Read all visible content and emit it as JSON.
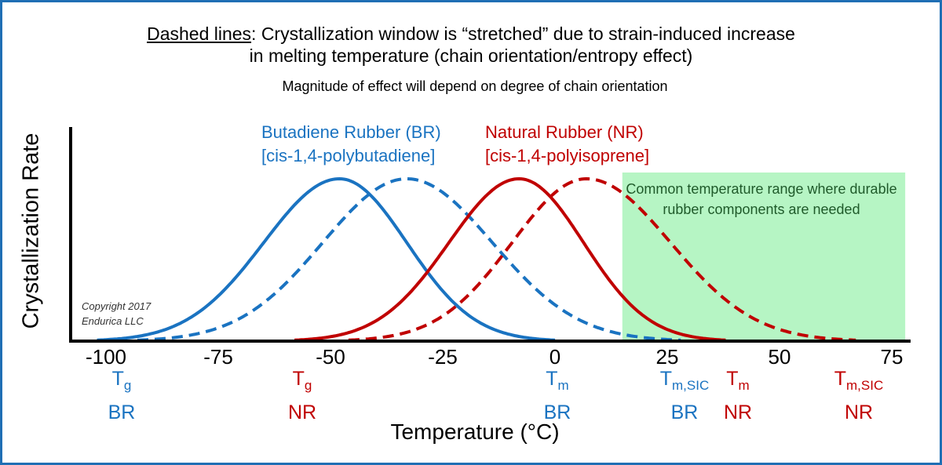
{
  "header": {
    "title_prefix": "Dashed lines",
    "title_line1_rest": ": Crystallization window is “stretched” due to strain-induced increase",
    "title_line2": "in melting temperature (chain orientation/entropy effect)",
    "subtitle": "Magnitude of effect will depend on degree of chain orientation"
  },
  "copyright": {
    "line1": "Copyright 2017",
    "line2": "Endurica LLC"
  },
  "shaded_region": {
    "text": "Common temperature range where durable rubber components are needed",
    "x_start": 15,
    "x_end": 78,
    "color": "#b6f5c4"
  },
  "annotations": {
    "tg_br": {
      "main": "T",
      "sub": "g",
      "material": "BR"
    },
    "tg_nr": {
      "main": "T",
      "sub": "g",
      "material": "NR"
    },
    "tm_br": {
      "main": "T",
      "sub": "m",
      "material": "BR"
    },
    "tmsic_br": {
      "main": "T",
      "sub": "m,SIC",
      "material": "BR"
    },
    "tm_nr": {
      "main": "T",
      "sub": "m",
      "material": "NR"
    },
    "tmsic_nr": {
      "main": "T",
      "sub": "m,SIC",
      "material": "NR"
    }
  },
  "series_labels": {
    "br_line1": "Butadiene Rubber (BR)",
    "br_line2": "[cis-1,4-polybutadiene]",
    "nr_line1": "Natural Rubber (NR)",
    "nr_line2": "[cis-1,4-polyisoprene]"
  },
  "colors": {
    "br": "#1a73c1",
    "nr": "#c00000",
    "frame": "#1f6fb4"
  },
  "chart_data": {
    "type": "line",
    "xlabel": "Temperature (°C)",
    "ylabel": "Crystallization Rate",
    "xlim": [
      -112,
      82
    ],
    "ylim": [
      0,
      1
    ],
    "x_ticks": [
      -100,
      -75,
      -50,
      -25,
      0,
      25,
      50,
      75
    ],
    "x_tick_labels": [
      "-100",
      "-75",
      "-50",
      "-25",
      "0",
      "25",
      "50",
      "75"
    ],
    "grid": false,
    "series": [
      {
        "name": "Butadiene Rubber (BR)",
        "style": "solid",
        "color": "#1a73c1",
        "peak_x": -48,
        "x_range": [
          -102,
          0
        ],
        "peak_y": 1.0
      },
      {
        "name": "Butadiene Rubber (BR)",
        "style": "dashed",
        "color": "#1a73c1",
        "peak_x": -33,
        "x_range": [
          -93,
          28
        ],
        "peak_y": 1.0
      },
      {
        "name": "Natural Rubber (NR)",
        "style": "solid",
        "color": "#c00000",
        "peak_x": -8,
        "x_range": [
          -58,
          38
        ],
        "peak_y": 1.0
      },
      {
        "name": "Natural Rubber (NR)",
        "style": "dashed",
        "color": "#c00000",
        "peak_x": 7,
        "x_range": [
          -46,
          67
        ],
        "peak_y": 1.0
      }
    ]
  }
}
